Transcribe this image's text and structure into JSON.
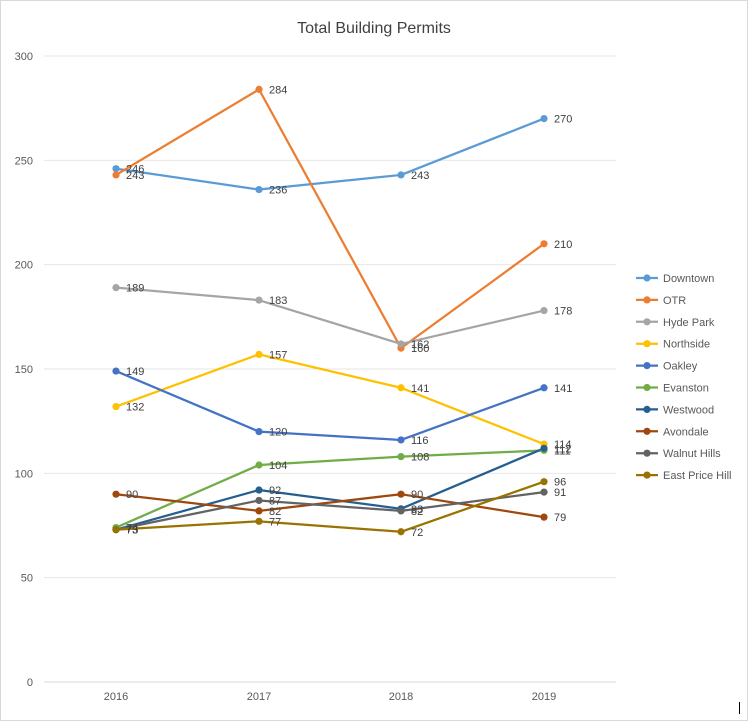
{
  "chart_data": {
    "type": "line",
    "title": "Total Building Permits",
    "xlabel": "",
    "ylabel": "",
    "categories": [
      "2016",
      "2017",
      "2018",
      "2019"
    ],
    "ylim": [
      0,
      300
    ],
    "yticks": [
      0,
      50,
      100,
      150,
      200,
      250,
      300
    ],
    "grid": true,
    "legend_position": "right",
    "series": [
      {
        "name": "Downtown",
        "values": [
          246,
          236,
          243,
          270
        ],
        "color": "#5b9bd5"
      },
      {
        "name": "OTR",
        "values": [
          243,
          284,
          160,
          210
        ],
        "color": "#ed7d31"
      },
      {
        "name": "Hyde Park",
        "values": [
          189,
          183,
          162,
          178
        ],
        "color": "#a5a5a5"
      },
      {
        "name": "Northside",
        "values": [
          132,
          157,
          141,
          114
        ],
        "color": "#ffc000"
      },
      {
        "name": "Oakley",
        "values": [
          149,
          120,
          116,
          141
        ],
        "color": "#4472c4"
      },
      {
        "name": "Evanston",
        "values": [
          74,
          104,
          108,
          111
        ],
        "color": "#70ad47"
      },
      {
        "name": "Westwood",
        "values": [
          73,
          92,
          83,
          112
        ],
        "color": "#255e91"
      },
      {
        "name": "Avondale",
        "values": [
          90,
          82,
          90,
          79
        ],
        "color": "#9e480e"
      },
      {
        "name": "Walnut Hills",
        "values": [
          73,
          87,
          82,
          91
        ],
        "color": "#636363"
      },
      {
        "name": "East Price Hill",
        "values": [
          73,
          77,
          72,
          96
        ],
        "color": "#997300"
      }
    ]
  }
}
